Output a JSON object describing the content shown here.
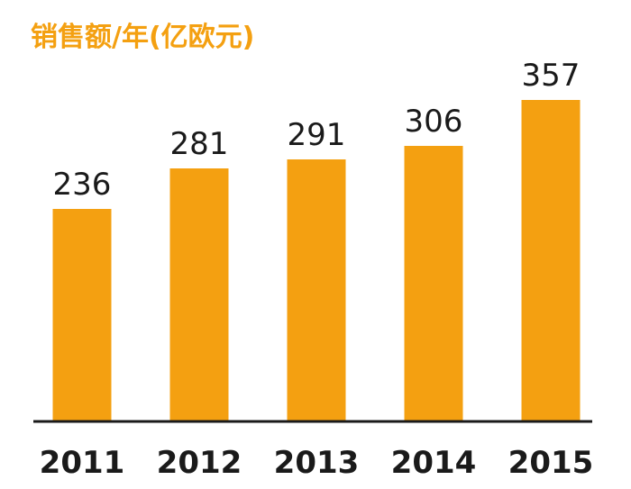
{
  "chart_data": {
    "type": "bar",
    "title": "销售额/年(亿欧元)",
    "categories": [
      "2011",
      "2012",
      "2013",
      "2014",
      "2015"
    ],
    "values": [
      236,
      281,
      291,
      306,
      357
    ],
    "xlabel": "",
    "ylabel": "",
    "grid": false,
    "bar_color": "#F4A011",
    "title_color": "#F4A011",
    "axis_color": "#1a1a1a"
  }
}
